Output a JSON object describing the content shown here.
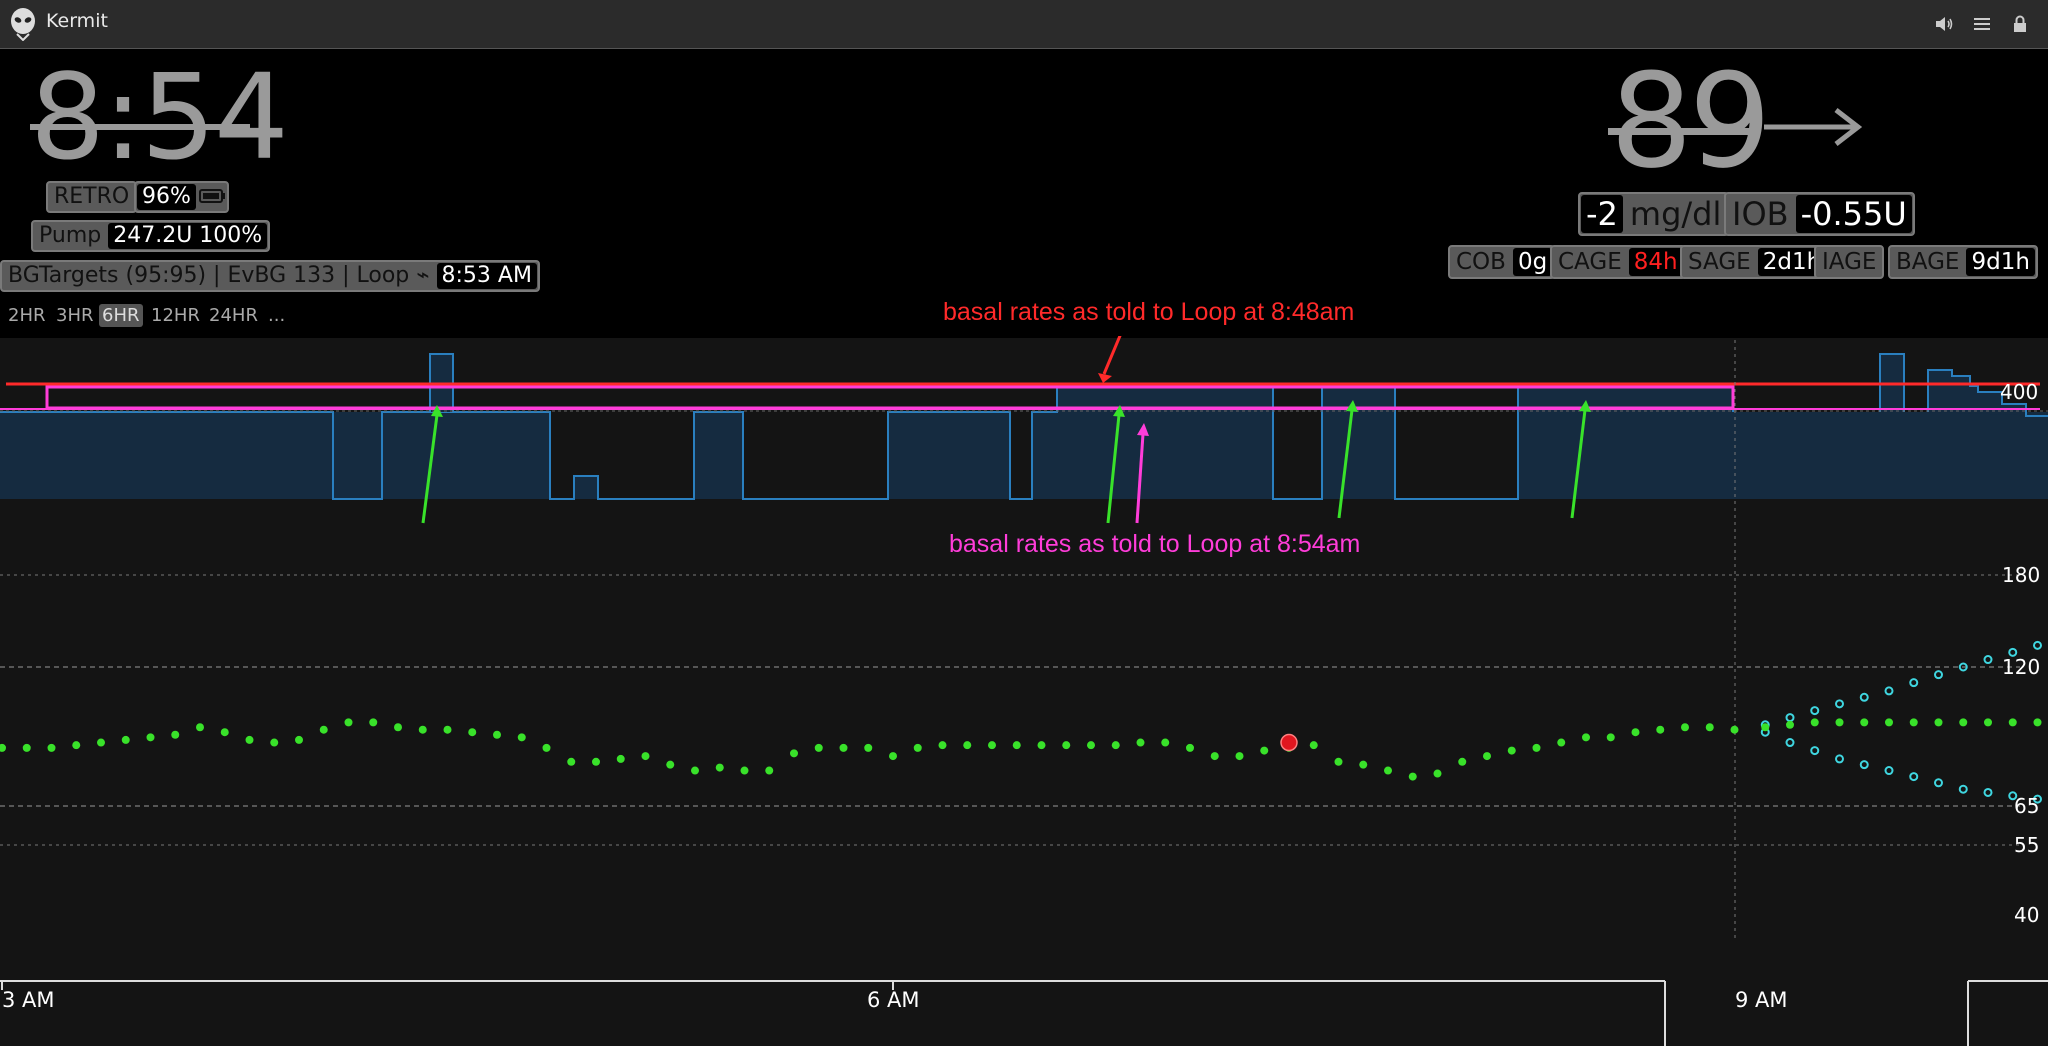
{
  "app": {
    "title": "Kermit"
  },
  "header": {
    "time": "8:54",
    "retro_label": "RETRO",
    "battery": "96%",
    "pump_label": "Pump",
    "pump_value": "247.2U 100%",
    "loop_status": "BGTargets (95:95) | EvBG 133 | Loop ⌁",
    "loop_time": "8:53 AM",
    "bg": "89",
    "trend_icon": "arrow-right-icon",
    "delta": "-2",
    "delta_unit": "mg/dl",
    "iob_label": "IOB",
    "iob_value": "-0.55U",
    "cob_label": "COB",
    "cob_value": "0g",
    "cage_label": "CAGE",
    "cage_value": "84h",
    "sage_label": "SAGE",
    "sage_value": "2d1h",
    "iage_label": "IAGE",
    "bage_label": "BAGE",
    "bage_value": "9d1h"
  },
  "ranges": [
    "2HR",
    "3HR",
    "6HR",
    "12HR",
    "24HR",
    "..."
  ],
  "active_range": "6HR",
  "annotations": {
    "red_note": "basal rates as told to Loop at 8:48am",
    "magenta_note": "basal rates as told to Loop at 8:54am"
  },
  "colors": {
    "bg_points": "#39e22a",
    "prediction": "#3fd6e0",
    "red_line": "#ff2a2a",
    "magenta_line": "#ff3dd9",
    "basal_fill": "#152b40",
    "basal_stroke": "#2a7fbf",
    "cage_value": "#ff2020"
  },
  "chart_data": {
    "type": "scatter",
    "x_ticks": [
      "3 AM",
      "6 AM",
      "9 AM"
    ],
    "y_ticks": [
      400,
      180,
      120,
      65,
      55,
      40
    ],
    "basal_top_label": "400",
    "bg_series_name": "",
    "bg_points": [
      {
        "t": "2:55",
        "y": 84
      },
      {
        "t": "3:00",
        "y": 84
      },
      {
        "t": "3:05",
        "y": 84
      },
      {
        "t": "3:10",
        "y": 84
      },
      {
        "t": "3:15",
        "y": 85
      },
      {
        "t": "3:20",
        "y": 86
      },
      {
        "t": "3:25",
        "y": 87
      },
      {
        "t": "3:30",
        "y": 88
      },
      {
        "t": "3:35",
        "y": 89
      },
      {
        "t": "3:40",
        "y": 92
      },
      {
        "t": "3:45",
        "y": 90
      },
      {
        "t": "3:50",
        "y": 87
      },
      {
        "t": "3:55",
        "y": 86
      },
      {
        "t": "4:00",
        "y": 87
      },
      {
        "t": "4:05",
        "y": 91
      },
      {
        "t": "4:10",
        "y": 94
      },
      {
        "t": "4:15",
        "y": 94
      },
      {
        "t": "4:20",
        "y": 92
      },
      {
        "t": "4:25",
        "y": 91
      },
      {
        "t": "4:30",
        "y": 91
      },
      {
        "t": "4:35",
        "y": 90
      },
      {
        "t": "4:40",
        "y": 89
      },
      {
        "t": "4:45",
        "y": 88
      },
      {
        "t": "4:50",
        "y": 84
      },
      {
        "t": "4:55",
        "y": 79
      },
      {
        "t": "5:00",
        "y": 79
      },
      {
        "t": "5:05",
        "y": 80
      },
      {
        "t": "5:10",
        "y": 81
      },
      {
        "t": "5:15",
        "y": 78
      },
      {
        "t": "5:20",
        "y": 76
      },
      {
        "t": "5:25",
        "y": 77
      },
      {
        "t": "5:30",
        "y": 76
      },
      {
        "t": "5:35",
        "y": 76
      },
      {
        "t": "5:40",
        "y": 82
      },
      {
        "t": "5:45",
        "y": 84
      },
      {
        "t": "5:50",
        "y": 84
      },
      {
        "t": "5:55",
        "y": 84
      },
      {
        "t": "6:00",
        "y": 81
      },
      {
        "t": "6:05",
        "y": 84
      },
      {
        "t": "6:10",
        "y": 85
      },
      {
        "t": "6:15",
        "y": 85
      },
      {
        "t": "6:20",
        "y": 85
      },
      {
        "t": "6:25",
        "y": 85
      },
      {
        "t": "6:30",
        "y": 85
      },
      {
        "t": "6:35",
        "y": 85
      },
      {
        "t": "6:40",
        "y": 85
      },
      {
        "t": "6:45",
        "y": 85
      },
      {
        "t": "6:50",
        "y": 86
      },
      {
        "t": "6:55",
        "y": 86
      },
      {
        "t": "7:00",
        "y": 84
      },
      {
        "t": "7:05",
        "y": 81
      },
      {
        "t": "7:10",
        "y": 81
      },
      {
        "t": "7:15",
        "y": 83
      },
      {
        "t": "7:20",
        "y": 84
      },
      {
        "t": "7:25",
        "y": 85
      },
      {
        "t": "7:30",
        "y": 79
      },
      {
        "t": "7:35",
        "y": 78
      },
      {
        "t": "7:40",
        "y": 76
      },
      {
        "t": "7:45",
        "y": 74
      },
      {
        "t": "7:50",
        "y": 75
      },
      {
        "t": "7:55",
        "y": 79
      },
      {
        "t": "8:00",
        "y": 81
      },
      {
        "t": "8:05",
        "y": 83
      },
      {
        "t": "8:10",
        "y": 84
      },
      {
        "t": "8:15",
        "y": 86
      },
      {
        "t": "8:20",
        "y": 88
      },
      {
        "t": "8:25",
        "y": 88
      },
      {
        "t": "8:30",
        "y": 90
      },
      {
        "t": "8:35",
        "y": 91
      },
      {
        "t": "8:40",
        "y": 92
      },
      {
        "t": "8:45",
        "y": 92
      },
      {
        "t": "8:50",
        "y": 91
      }
    ],
    "red_point": {
      "t": "7:20",
      "y": 86
    },
    "prediction_mid": [
      92,
      93,
      94,
      94,
      94,
      94,
      94,
      94,
      94,
      94,
      94,
      94,
      94
    ],
    "prediction_high": [
      93,
      96,
      99,
      102,
      105,
      108,
      112,
      116,
      120,
      124,
      128,
      132,
      136
    ],
    "prediction_low": [
      90,
      86,
      83,
      80,
      78,
      76,
      74,
      72,
      70,
      69,
      68,
      67,
      67
    ]
  }
}
